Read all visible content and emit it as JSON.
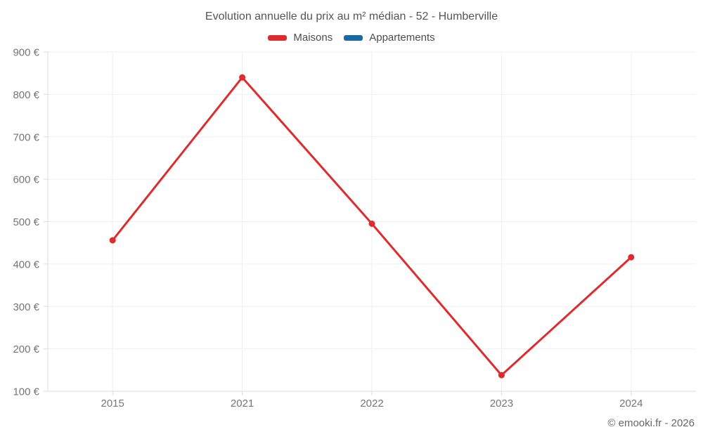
{
  "title": "Evolution annuelle du prix au m² médian - 52 - Humberville",
  "footer": "© emooki.fr - 2026",
  "legend": {
    "items": [
      {
        "label": "Maisons",
        "color": "#dc2c2e"
      },
      {
        "label": "Appartements",
        "color": "#176aa3"
      }
    ]
  },
  "chart_data": {
    "type": "line",
    "title": "Evolution annuelle du prix au m² médian - 52 - Humberville",
    "categories": [
      "2015",
      "2021",
      "2022",
      "2023",
      "2024"
    ],
    "series": [
      {
        "name": "Maisons",
        "color": "#dc2c2e",
        "values": [
          456,
          840,
          495,
          138,
          416
        ]
      },
      {
        "name": "Appartements",
        "color": "#176aa3",
        "values": []
      }
    ],
    "xlabel": "",
    "ylabel": "",
    "ylim": [
      100,
      900
    ],
    "ytick_step": 100,
    "ytick_suffix": " €",
    "grid": true,
    "legend_position": "top",
    "colors": {
      "gridline": "#efefef",
      "axis_line": "#dcdcdc",
      "tick": "#dcdcdc",
      "axis_label": "#757575",
      "title": "#555555",
      "footer": "#666666"
    }
  }
}
